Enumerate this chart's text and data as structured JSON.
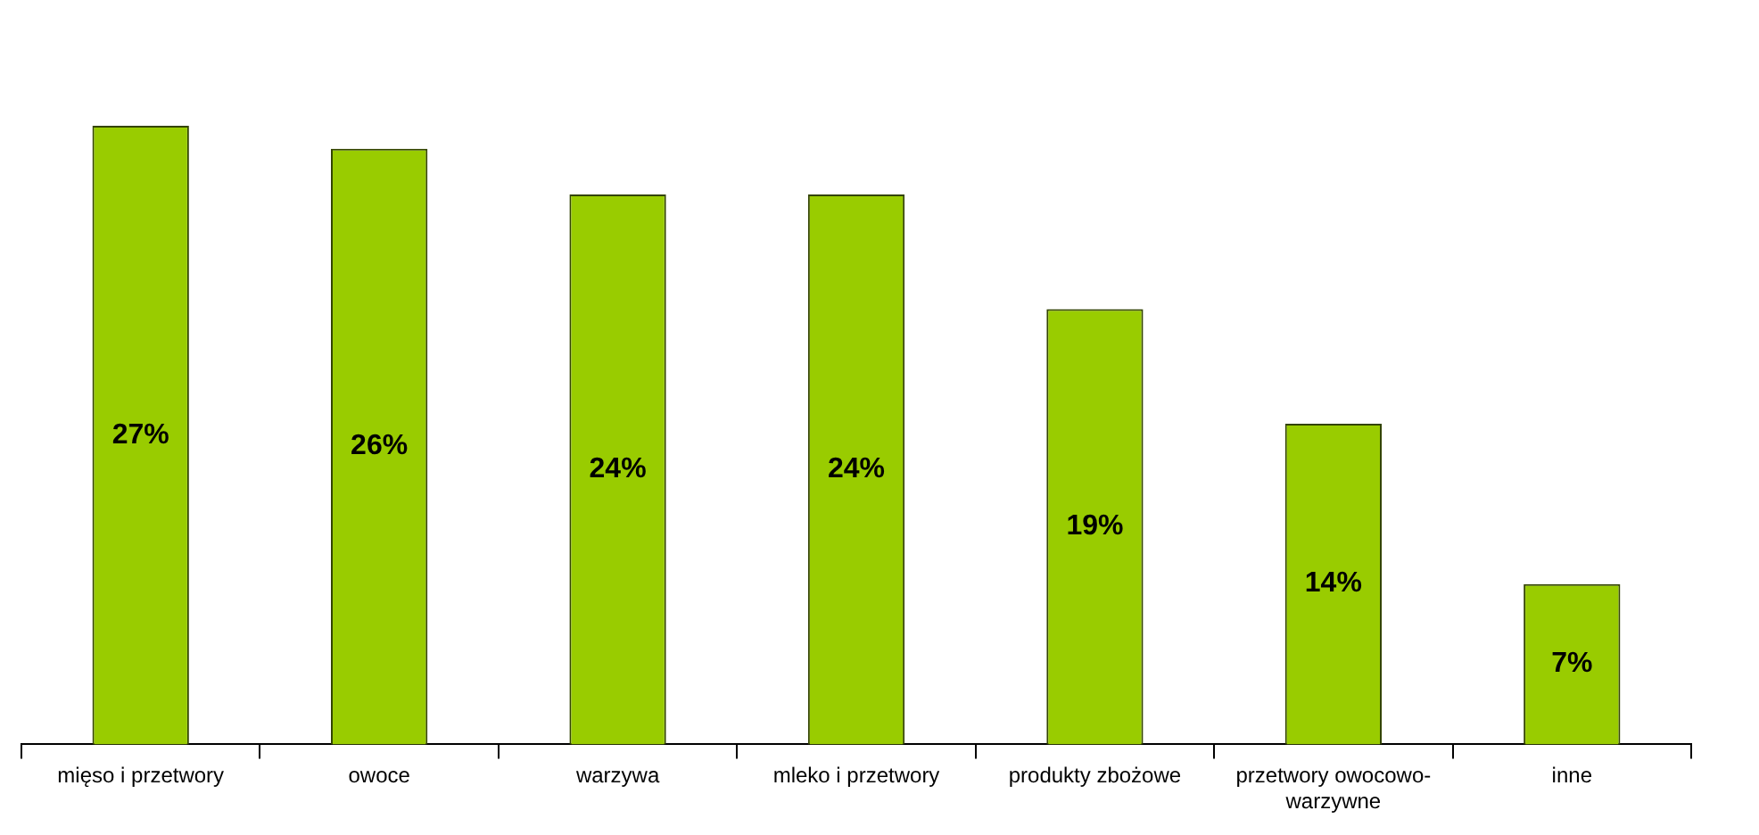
{
  "chart_data": {
    "type": "bar",
    "categories": [
      "mięso i przetwory",
      "owoce",
      "warzywa",
      "mleko i przetwory",
      "produkty zbożowe",
      "przetwory owocowo-warzywne",
      "inne"
    ],
    "values": [
      27,
      26,
      24,
      24,
      19,
      14,
      7
    ],
    "value_labels": [
      "27%",
      "26%",
      "24%",
      "24%",
      "19%",
      "14%",
      "7%"
    ],
    "color": "#99cc00",
    "legend": false,
    "grid": false
  }
}
